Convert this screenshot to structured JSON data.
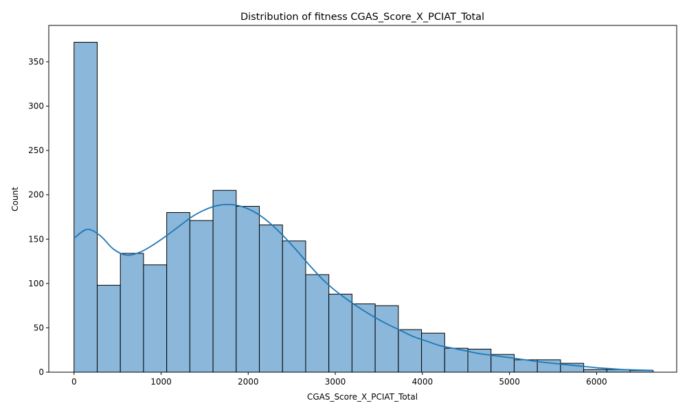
{
  "chart_data": {
    "type": "bar",
    "subtype": "histogram",
    "title": "Distribution of fitness CGAS_Score_X_PCIAT_Total",
    "xlabel": "CGAS_Score_X_PCIAT_Total",
    "ylabel": "Count",
    "xlim": [
      -290,
      6920
    ],
    "ylim": [
      0,
      391
    ],
    "xticks": [
      0,
      1000,
      2000,
      3000,
      4000,
      5000,
      6000
    ],
    "yticks": [
      0,
      50,
      100,
      150,
      200,
      250,
      300,
      350
    ],
    "bin_edges": [
      0,
      266,
      532,
      798,
      1064,
      1330,
      1596,
      1862,
      2128,
      2394,
      2660,
      2926,
      3192,
      3458,
      3724,
      3990,
      4256,
      4522,
      4788,
      5054,
      5320,
      5586,
      5852,
      6118,
      6384,
      6650
    ],
    "counts": [
      372,
      98,
      134,
      121,
      180,
      171,
      205,
      187,
      166,
      148,
      110,
      88,
      77,
      75,
      48,
      44,
      27,
      26,
      20,
      14,
      14,
      10,
      3,
      3,
      2
    ],
    "kde": {
      "x": [
        0,
        150,
        300,
        450,
        600,
        750,
        900,
        1050,
        1200,
        1350,
        1500,
        1650,
        1800,
        1950,
        2100,
        2250,
        2400,
        2550,
        2700,
        2850,
        3000,
        3150,
        3300,
        3450,
        3600,
        3750,
        3900,
        4050,
        4200,
        4350,
        4500,
        4650,
        4800,
        4950,
        5100,
        5250,
        5400,
        5550,
        5700,
        5850,
        6000,
        6150,
        6300,
        6450,
        6650
      ],
      "y": [
        151,
        161,
        154,
        139,
        132,
        135,
        143,
        153,
        164,
        175,
        183,
        188,
        189,
        186,
        179,
        168,
        154,
        138,
        121,
        105,
        92,
        81,
        71,
        62,
        54,
        47,
        40,
        35,
        30,
        27,
        24,
        21,
        19,
        17,
        15,
        13,
        11,
        9.5,
        8,
        6.5,
        5,
        4,
        3,
        2.5,
        2
      ]
    },
    "colors": {
      "bar_fill": "#8ab7da",
      "bar_edge": "#000000",
      "kde_line": "#1f77b4"
    },
    "grid": false,
    "legend": "none"
  }
}
